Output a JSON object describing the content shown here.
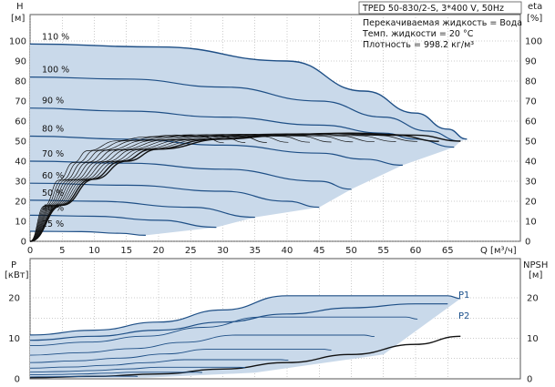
{
  "header": {
    "pump_title": "TPED 50-830/2-S, 3*400 V, 50Hz",
    "fluid": "Перекачиваемая жидкость = Вода",
    "temperature": "Темп. жидкости = 20 °C",
    "density": "Плотность = 998.2 кг/м³"
  },
  "colors": {
    "curve": "#1e4f86",
    "fill": "#c9d9ea",
    "grid": "#9a9a9a",
    "eff": "#111111"
  },
  "chart_data": [
    {
      "type": "line",
      "name": "head",
      "ylabel_left_line1": "H",
      "ylabel_left_line2": "[м]",
      "ylabel_right_line1": "eta",
      "ylabel_right_line2": "[%]",
      "xlabel": "Q [м³/ч]",
      "xlim": [
        0,
        70
      ],
      "ylim": [
        0,
        100
      ],
      "x_ticks": [
        "0",
        "5",
        "10",
        "15",
        "20",
        "25",
        "30",
        "35",
        "40",
        "45",
        "50",
        "55",
        "60",
        "65"
      ],
      "y_ticks": [
        "0",
        "10",
        "20",
        "30",
        "40",
        "50",
        "60",
        "70",
        "80",
        "90",
        "100"
      ],
      "grid": true,
      "series": [
        {
          "name": "110 %",
          "x": [
            0,
            20,
            40,
            52,
            60,
            65,
            68
          ],
          "y": [
            98.5,
            97,
            90,
            75,
            64,
            56,
            51
          ]
        },
        {
          "name": "100 %",
          "x": [
            0,
            15,
            30,
            45,
            55,
            62,
            67
          ],
          "y": [
            82,
            81,
            77,
            70,
            62,
            55,
            50
          ]
        },
        {
          "name": "90 %",
          "x": [
            0,
            15,
            30,
            45,
            55,
            60,
            66
          ],
          "y": [
            66.5,
            65,
            62,
            58,
            54,
            51,
            47
          ]
        },
        {
          "name": "80 %",
          "x": [
            0,
            15,
            30,
            45,
            52,
            58
          ],
          "y": [
            52.5,
            51,
            48,
            44,
            41,
            38
          ]
        },
        {
          "name": "70 %",
          "x": [
            0,
            15,
            30,
            45,
            50
          ],
          "y": [
            40,
            39,
            36,
            30,
            26
          ]
        },
        {
          "name": "60 %",
          "x": [
            0,
            15,
            30,
            40,
            45
          ],
          "y": [
            29,
            28,
            25,
            20,
            17
          ]
        },
        {
          "name": "50 %",
          "x": [
            0,
            10,
            25,
            35
          ],
          "y": [
            20.5,
            20,
            17,
            12
          ]
        },
        {
          "name": "40 %",
          "x": [
            0,
            10,
            20,
            29
          ],
          "y": [
            13,
            12.5,
            10.5,
            7
          ]
        },
        {
          "name": "25 %",
          "x": [
            0,
            8,
            14,
            18
          ],
          "y": [
            5,
            4.8,
            4,
            3
          ]
        }
      ],
      "efficiency_curves": [
        {
          "name": "eta",
          "x": [
            0,
            5,
            10,
            15,
            20,
            30,
            40,
            50,
            60,
            67
          ],
          "y": [
            0,
            18,
            31,
            40,
            46,
            51,
            53,
            54,
            53,
            50
          ]
        }
      ]
    },
    {
      "type": "line",
      "name": "power",
      "ylabel_left_line1": "P",
      "ylabel_left_line2": "[кВт]",
      "ylabel_right_line1": "NPSH",
      "ylabel_right_line2": "[м]",
      "xlim": [
        0,
        70
      ],
      "ylim": [
        0,
        25
      ],
      "y_ticks": [
        "0",
        "10",
        "20"
      ],
      "grid": true,
      "series": [
        {
          "name": "P1",
          "x": [
            0,
            10,
            20,
            30,
            40,
            50,
            60,
            65,
            67
          ],
          "y": [
            10.8,
            12,
            14,
            17,
            20.5,
            20.5,
            20.5,
            20.5,
            19.8
          ]
        },
        {
          "name": "P2",
          "x": [
            0,
            10,
            20,
            30,
            40,
            50,
            60,
            65
          ],
          "y": [
            9.5,
            10.5,
            12,
            14,
            16,
            17.5,
            18.5,
            18.5
          ]
        },
        {
          "name": "NPSH",
          "x": [
            0,
            10,
            20,
            30,
            40,
            50,
            60,
            67
          ],
          "y": [
            0.3,
            0.6,
            1.2,
            2.4,
            4,
            6,
            8.5,
            10.5
          ]
        }
      ]
    }
  ]
}
